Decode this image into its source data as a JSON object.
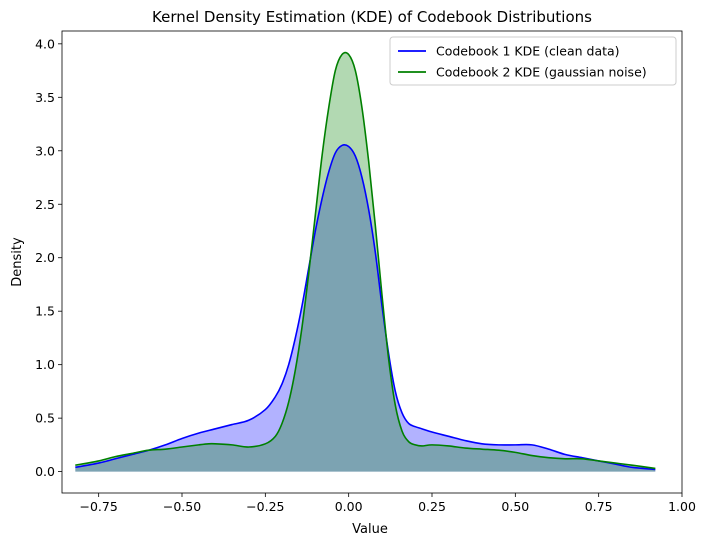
{
  "chart_data": {
    "type": "area",
    "title": "Kernel Density Estimation (KDE) of Codebook Distributions",
    "xlabel": "Value",
    "ylabel": "Density",
    "xlim": [
      -0.86,
      1.0
    ],
    "ylim": [
      -0.2,
      4.12
    ],
    "xticks": [
      -0.75,
      -0.5,
      -0.25,
      0.0,
      0.25,
      0.5,
      0.75,
      1.0
    ],
    "xtick_labels": [
      "−0.75",
      "−0.50",
      "−0.25",
      "0.00",
      "0.25",
      "0.50",
      "0.75",
      "1.00"
    ],
    "yticks": [
      0.0,
      0.5,
      1.0,
      1.5,
      2.0,
      2.5,
      3.0,
      3.5,
      4.0
    ],
    "ytick_labels": [
      "0.0",
      "0.5",
      "1.0",
      "1.5",
      "2.0",
      "2.5",
      "3.0",
      "3.5",
      "4.0"
    ],
    "grid": false,
    "legend": "top-right",
    "series": [
      {
        "name": "Codebook 1 KDE (clean data)",
        "color": "#0000ff",
        "fill": "#0000ff",
        "fill_alpha": 0.3,
        "x": [
          -0.82,
          -0.75,
          -0.7,
          -0.65,
          -0.6,
          -0.55,
          -0.5,
          -0.45,
          -0.4,
          -0.35,
          -0.3,
          -0.25,
          -0.22,
          -0.2,
          -0.18,
          -0.16,
          -0.14,
          -0.12,
          -0.1,
          -0.08,
          -0.06,
          -0.04,
          -0.02,
          0.0,
          0.02,
          0.04,
          0.06,
          0.08,
          0.1,
          0.12,
          0.14,
          0.16,
          0.18,
          0.2,
          0.22,
          0.25,
          0.3,
          0.35,
          0.4,
          0.45,
          0.5,
          0.55,
          0.6,
          0.65,
          0.7,
          0.75,
          0.8,
          0.85,
          0.92
        ],
        "y": [
          0.04,
          0.08,
          0.12,
          0.16,
          0.2,
          0.25,
          0.31,
          0.36,
          0.4,
          0.44,
          0.48,
          0.58,
          0.7,
          0.82,
          1.0,
          1.25,
          1.55,
          1.9,
          2.25,
          2.55,
          2.8,
          2.98,
          3.05,
          3.04,
          2.95,
          2.75,
          2.45,
          2.05,
          1.55,
          1.1,
          0.75,
          0.55,
          0.45,
          0.42,
          0.4,
          0.37,
          0.33,
          0.29,
          0.26,
          0.25,
          0.25,
          0.25,
          0.21,
          0.16,
          0.13,
          0.1,
          0.07,
          0.04,
          0.02
        ]
      },
      {
        "name": "Codebook 2 KDE (gaussian noise)",
        "color": "#008000",
        "fill": "#008000",
        "fill_alpha": 0.3,
        "x": [
          -0.82,
          -0.75,
          -0.7,
          -0.65,
          -0.6,
          -0.55,
          -0.5,
          -0.45,
          -0.42,
          -0.4,
          -0.35,
          -0.3,
          -0.25,
          -0.22,
          -0.2,
          -0.18,
          -0.16,
          -0.14,
          -0.12,
          -0.1,
          -0.08,
          -0.06,
          -0.04,
          -0.02,
          0.0,
          0.02,
          0.04,
          0.06,
          0.08,
          0.1,
          0.12,
          0.14,
          0.16,
          0.18,
          0.2,
          0.22,
          0.25,
          0.3,
          0.35,
          0.4,
          0.45,
          0.5,
          0.55,
          0.6,
          0.65,
          0.7,
          0.75,
          0.8,
          0.85,
          0.92
        ],
        "y": [
          0.06,
          0.1,
          0.14,
          0.17,
          0.2,
          0.21,
          0.23,
          0.25,
          0.26,
          0.26,
          0.25,
          0.23,
          0.26,
          0.33,
          0.45,
          0.65,
          0.95,
          1.35,
          1.85,
          2.4,
          2.95,
          3.4,
          3.75,
          3.9,
          3.9,
          3.75,
          3.4,
          2.9,
          2.3,
          1.65,
          1.05,
          0.62,
          0.38,
          0.28,
          0.25,
          0.24,
          0.25,
          0.24,
          0.22,
          0.21,
          0.2,
          0.18,
          0.15,
          0.13,
          0.12,
          0.12,
          0.1,
          0.08,
          0.06,
          0.03
        ]
      }
    ]
  }
}
